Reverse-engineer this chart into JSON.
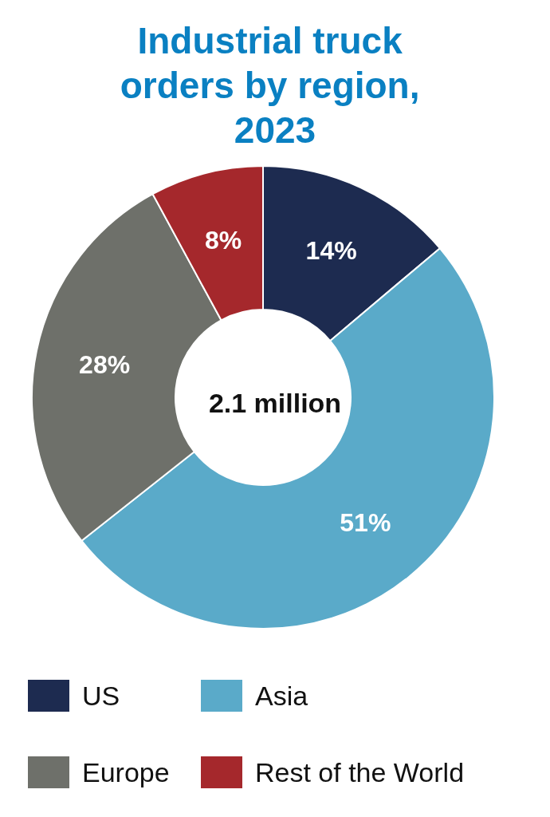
{
  "chart_data": {
    "type": "donut",
    "title": "Industrial truck orders by region, 2023",
    "categories": [
      "US",
      "Asia",
      "Europe",
      "Rest of the World"
    ],
    "values": [
      14,
      51,
      28,
      8
    ],
    "colors": [
      "#1d2b50",
      "#5aaac9",
      "#6e706a",
      "#a5282c"
    ],
    "value_labels": [
      "14%",
      "51%",
      "28%",
      "8%"
    ],
    "annotations": [
      "2.1 million"
    ],
    "legend": "bottom"
  }
}
